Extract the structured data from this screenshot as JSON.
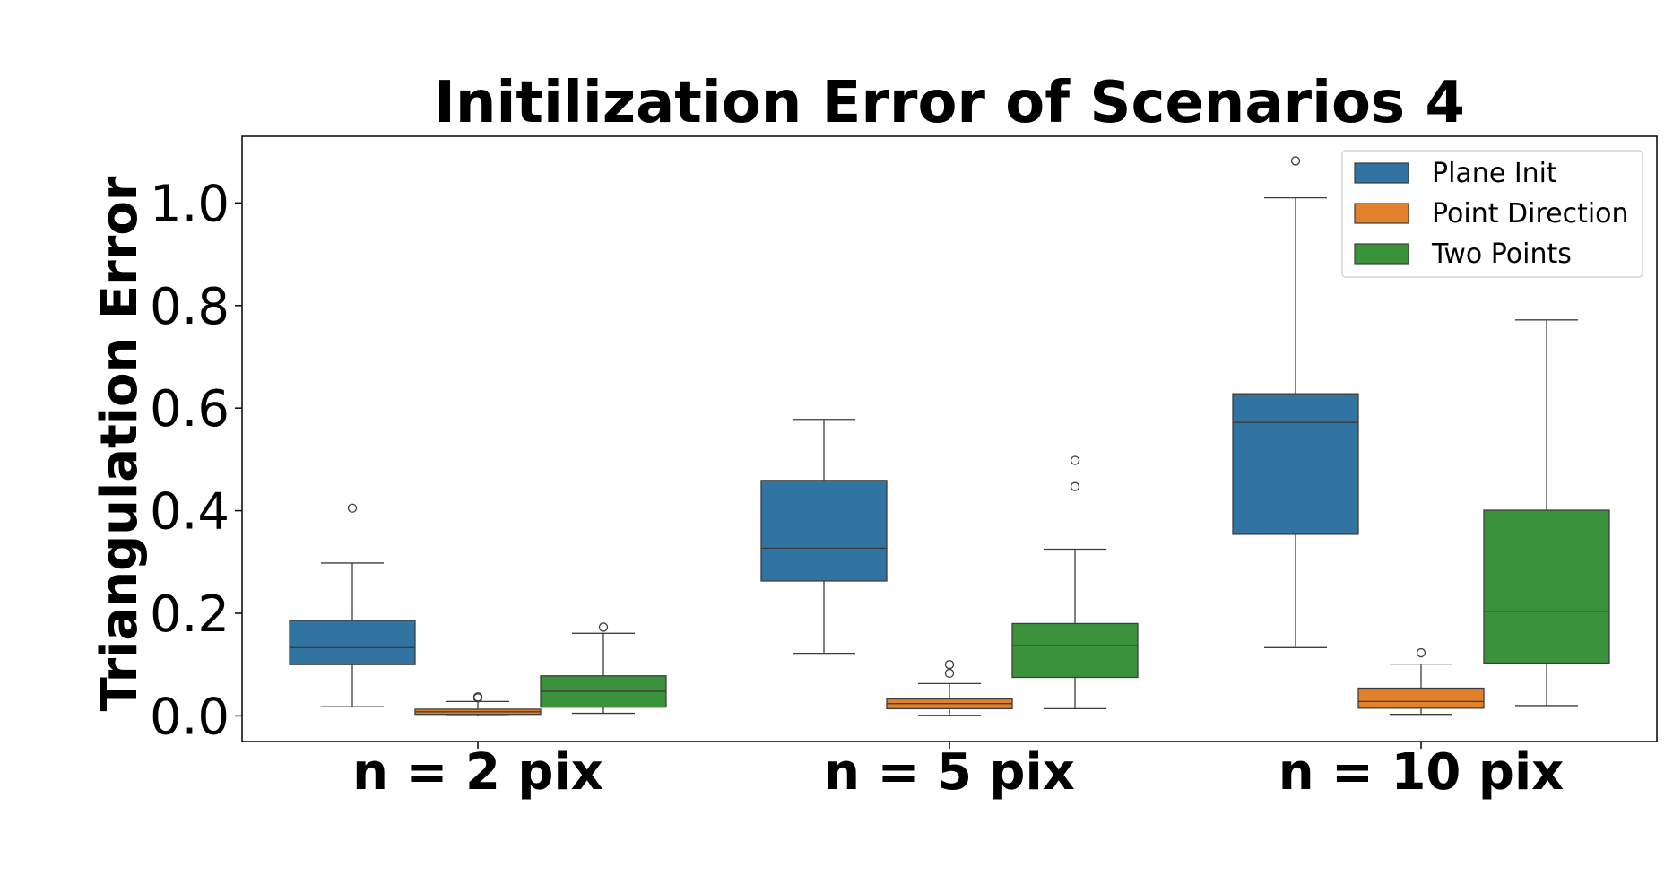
{
  "chart_data": {
    "type": "box",
    "title": "Initilization Error of Scenarios 4",
    "xlabel": "",
    "ylabel": "Triangulation Error",
    "ylim": [
      -0.05,
      1.13
    ],
    "yticks": [
      0.0,
      0.2,
      0.4,
      0.6,
      0.8,
      1.0
    ],
    "ytick_labels": [
      "0.0",
      "0.2",
      "0.4",
      "0.6",
      "0.8",
      "1.0"
    ],
    "categories": [
      "n = 2 pix",
      "n = 5 pix",
      "n = 10 pix"
    ],
    "legend": {
      "placement": "top-right"
    },
    "series": [
      {
        "name": "Plane Init",
        "color": "#3274a1",
        "boxes": [
          {
            "whisker_low": 0.018,
            "q1": 0.1,
            "median": 0.133,
            "q3": 0.186,
            "whisker_high": 0.298,
            "outliers": [
              0.405
            ]
          },
          {
            "whisker_low": 0.122,
            "q1": 0.263,
            "median": 0.327,
            "q3": 0.459,
            "whisker_high": 0.578,
            "outliers": []
          },
          {
            "whisker_low": 0.133,
            "q1": 0.354,
            "median": 0.572,
            "q3": 0.628,
            "whisker_high": 1.01,
            "outliers": [
              1.082
            ]
          }
        ]
      },
      {
        "name": "Point Direction",
        "color": "#e1812c",
        "boxes": [
          {
            "whisker_low": 0.0,
            "q1": 0.003,
            "median": 0.008,
            "q3": 0.013,
            "whisker_high": 0.028,
            "outliers": [
              0.035,
              0.037
            ]
          },
          {
            "whisker_low": 0.001,
            "q1": 0.014,
            "median": 0.024,
            "q3": 0.033,
            "whisker_high": 0.063,
            "outliers": [
              0.083,
              0.1
            ]
          },
          {
            "whisker_low": 0.003,
            "q1": 0.015,
            "median": 0.028,
            "q3": 0.054,
            "whisker_high": 0.101,
            "outliers": [
              0.123
            ]
          }
        ]
      },
      {
        "name": "Two Points",
        "color": "#3a923a",
        "boxes": [
          {
            "whisker_low": 0.005,
            "q1": 0.017,
            "median": 0.048,
            "q3": 0.078,
            "whisker_high": 0.161,
            "outliers": [
              0.173
            ]
          },
          {
            "whisker_low": 0.014,
            "q1": 0.075,
            "median": 0.137,
            "q3": 0.18,
            "whisker_high": 0.325,
            "outliers": [
              0.447,
              0.498
            ]
          },
          {
            "whisker_low": 0.02,
            "q1": 0.103,
            "median": 0.204,
            "q3": 0.401,
            "whisker_high": 0.772,
            "outliers": []
          }
        ]
      }
    ]
  }
}
